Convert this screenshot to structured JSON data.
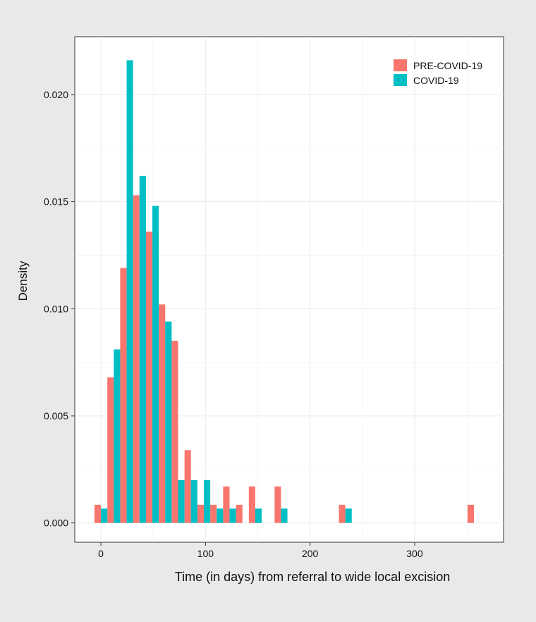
{
  "chart_data": {
    "type": "bar",
    "title": "",
    "xlabel": "Time (in days) from referral to wide local excision",
    "ylabel": "Density",
    "xlim": [
      -25,
      385
    ],
    "ylim": [
      -0.0009,
      0.0227
    ],
    "xticks": [
      0,
      100,
      200,
      300
    ],
    "xtick_labels": [
      "0",
      "100",
      "200",
      "300"
    ],
    "yticks": [
      0.0,
      0.005,
      0.01,
      0.015,
      0.02
    ],
    "ytick_labels": [
      "0.000",
      "0.005",
      "0.010",
      "0.015",
      "0.020"
    ],
    "bin_width": 12.3,
    "legend_position": "top-right",
    "grid": true,
    "series": [
      {
        "name": "PRE-COVID-19",
        "color": "#f8766d",
        "x": [
          0.0,
          12.3,
          24.6,
          36.9,
          49.2,
          61.5,
          73.8,
          86.1,
          98.4,
          110.7,
          123.0,
          135.3,
          147.6,
          172.2,
          233.7,
          356.7
        ],
        "values": [
          0.00085,
          0.0068,
          0.0119,
          0.0153,
          0.0136,
          0.0102,
          0.0085,
          0.0034,
          0.00085,
          0.00085,
          0.0017,
          0.00085,
          0.0017,
          0.0017,
          0.00085,
          0.00085
        ]
      },
      {
        "name": "COVID-19",
        "color": "#00bfc4",
        "x": [
          0.0,
          12.3,
          24.6,
          36.9,
          49.2,
          61.5,
          73.8,
          86.1,
          98.4,
          110.7,
          123.0,
          147.6,
          172.2,
          233.7
        ],
        "values": [
          0.00067,
          0.0081,
          0.0216,
          0.0162,
          0.0148,
          0.0094,
          0.002,
          0.002,
          0.002,
          0.00067,
          0.00067,
          0.00067,
          0.00067,
          0.00067
        ]
      }
    ]
  }
}
